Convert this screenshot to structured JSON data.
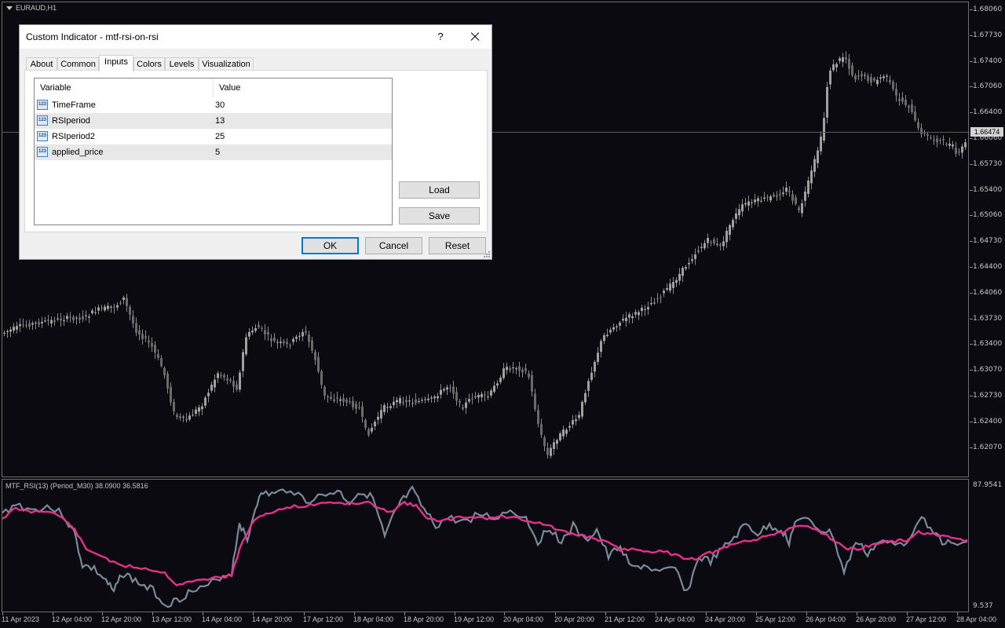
{
  "chart": {
    "symbol": "EURAUD,H1",
    "current_price": "1.66474",
    "indicator_label": "MTF_RSI(13) (Period_M30) 38.0900 36.5816",
    "price_labels": [
      "1.68060",
      "1.67730",
      "1.67400",
      "1.67060",
      "1.66400",
      "1.66060",
      "1.65730",
      "1.65400",
      "1.65060",
      "1.64730",
      "1.64400",
      "1.64060",
      "1.63730",
      "1.63400",
      "1.63070",
      "1.62730",
      "1.62400",
      "1.62070"
    ],
    "indicator_scale": [
      "87.9541",
      "9.537"
    ],
    "time_labels": [
      "11 Apr 2023",
      "12 Apr 04:00",
      "12 Apr 20:00",
      "13 Apr 12:00",
      "14 Apr 04:00",
      "14 Apr 20:00",
      "17 Apr 12:00",
      "18 Apr 04:00",
      "18 Apr 20:00",
      "19 Apr 12:00",
      "20 Apr 04:00",
      "20 Apr 20:00",
      "21 Apr 12:00",
      "24 Apr 04:00",
      "24 Apr 20:00",
      "25 Apr 12:00",
      "26 Apr 04:00",
      "26 Apr 20:00",
      "27 Apr 12:00",
      "28 Apr 04:00"
    ],
    "colors": {
      "background": "#0a0a10",
      "candles": "#8c8c8c",
      "rsi_line": "#7a8a99",
      "signal_line": "#e6318a"
    }
  },
  "dialog": {
    "title": "Custom Indicator - mtf-rsi-on-rsi",
    "help_label": "?",
    "tabs": [
      {
        "label": "About"
      },
      {
        "label": "Common"
      },
      {
        "label": "Inputs"
      },
      {
        "label": "Colors"
      },
      {
        "label": "Levels"
      },
      {
        "label": "Visualization"
      }
    ],
    "active_tab": "Inputs",
    "table": {
      "col_variable": "Variable",
      "col_value": "Value",
      "rows": [
        {
          "variable": "TimeFrame",
          "value": "30",
          "icon": "123-icon"
        },
        {
          "variable": "RSIperiod",
          "value": "13",
          "icon": "123-icon"
        },
        {
          "variable": "RSIperiod2",
          "value": "25",
          "icon": "123-icon"
        },
        {
          "variable": "applied_price",
          "value": "5",
          "icon": "123-icon"
        }
      ],
      "icon_text": "123"
    },
    "load_label": "Load",
    "save_label": "Save",
    "ok_label": "OK",
    "cancel_label": "Cancel",
    "reset_label": "Reset"
  }
}
